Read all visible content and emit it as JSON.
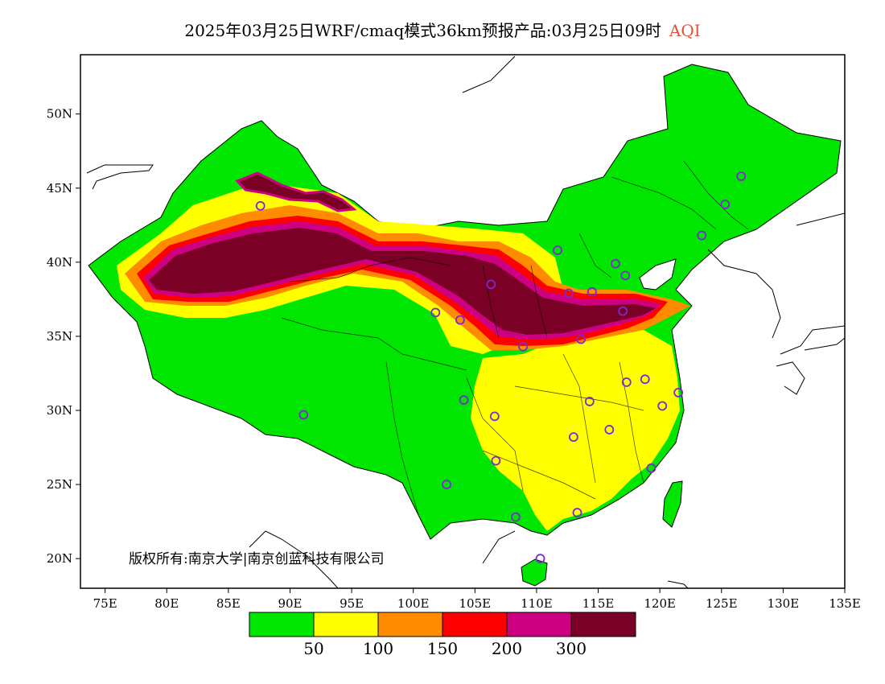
{
  "title": {
    "main": "2025年03月25日WRF/cmaq模式36km预报产品:03月25日09时",
    "variable": "AQI",
    "variable_color": "#e0503c"
  },
  "axes": {
    "lon_labels": [
      "75E",
      "80E",
      "85E",
      "90E",
      "95E",
      "100E",
      "105E",
      "110E",
      "115E",
      "120E",
      "125E",
      "130E",
      "135E"
    ],
    "lat_labels": [
      "50N",
      "45N",
      "40N",
      "35N",
      "30N",
      "25N",
      "20N"
    ],
    "lon_range": [
      73,
      135
    ],
    "lat_range": [
      18,
      54
    ]
  },
  "colorbar": {
    "colors": [
      "#00e600",
      "#ffff00",
      "#ff8c00",
      "#ff0000",
      "#cc0080",
      "#7a0025"
    ],
    "labels": [
      "50",
      "100",
      "150",
      "200",
      "300"
    ]
  },
  "copyright": "版权所有:南京大学|南京创蓝科技有限公司",
  "station_color": "#7a2ad0"
}
